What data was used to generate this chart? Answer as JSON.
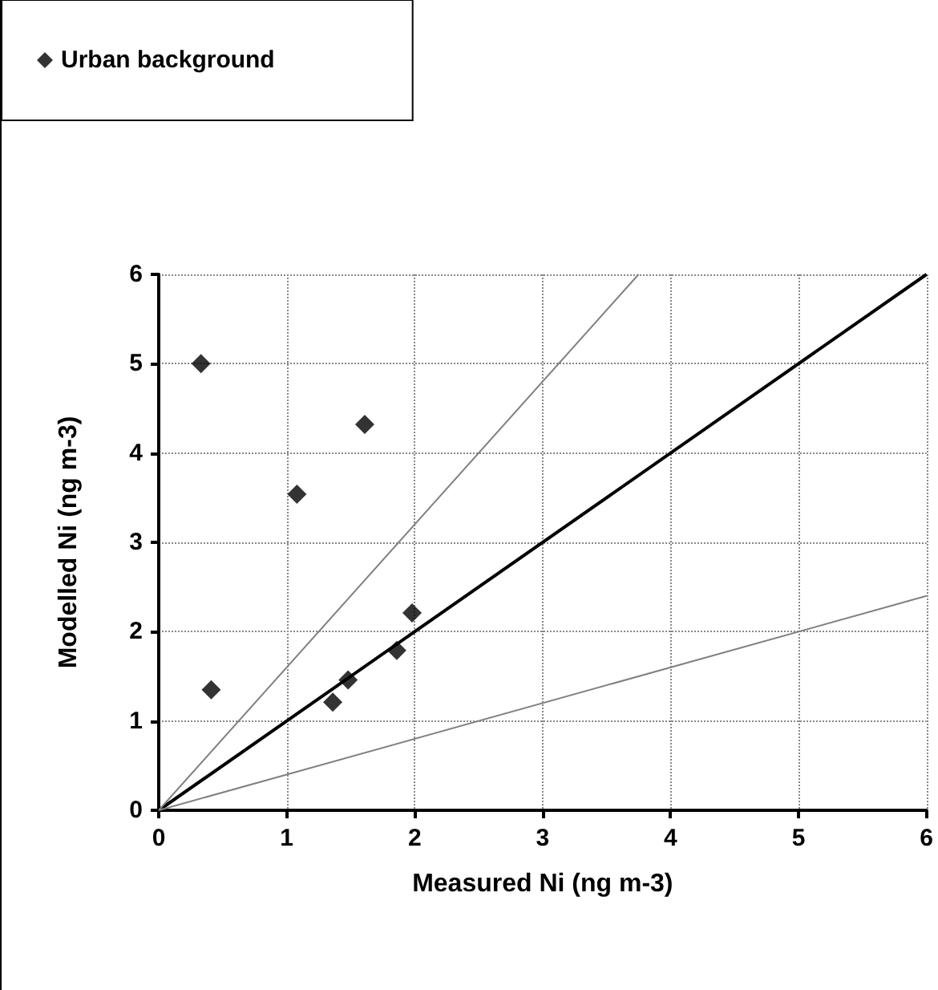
{
  "chart_data": {
    "type": "scatter",
    "xlabel": "Measured Ni (ng m-3)",
    "ylabel": "Modelled Ni (ng m-3)",
    "xlim": [
      0,
      6
    ],
    "ylim": [
      0,
      6
    ],
    "xticks": [
      0,
      1,
      2,
      3,
      4,
      5,
      6
    ],
    "yticks": [
      0,
      1,
      2,
      3,
      4,
      5,
      6
    ],
    "grid": true,
    "legend": "top left",
    "marker": "diamond",
    "series": [
      {
        "name": "Urban background",
        "color": "#000000",
        "x": [
          0.33,
          0.41,
          1.08,
          1.61,
          1.36,
          1.48,
          1.86,
          1.98
        ],
        "values": [
          5.0,
          1.35,
          3.54,
          4.32,
          1.21,
          1.46,
          1.79,
          2.21
        ]
      },
      {
        "type": "line",
        "color": "#000000",
        "marker": "none",
        "x": [
          0,
          6
        ],
        "values": [
          0,
          6
        ]
      },
      {
        "type": "line",
        "color": "#808080",
        "marker": "none",
        "x": [
          0,
          3.75
        ],
        "values": [
          0,
          6
        ]
      },
      {
        "type": "line",
        "color": "#808080",
        "marker": "none",
        "x": [
          0,
          6
        ],
        "values": [
          0,
          2.4
        ]
      }
    ]
  }
}
